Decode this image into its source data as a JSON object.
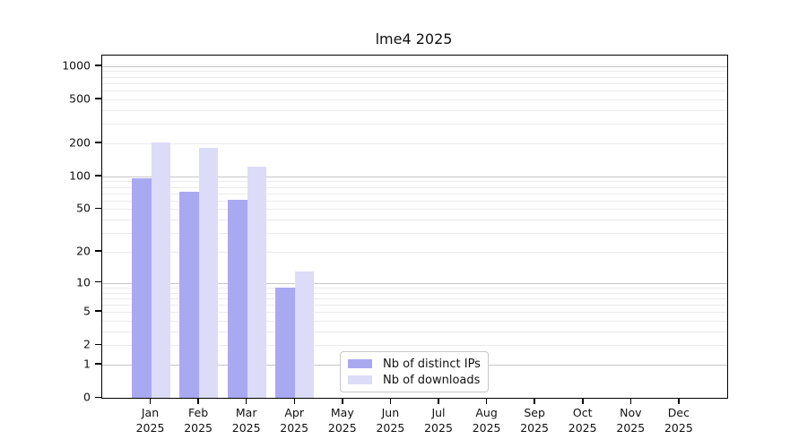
{
  "title": "lme4 2025",
  "legend": {
    "items": [
      {
        "label": "Nb of distinct IPs",
        "color": "#a9a9f2"
      },
      {
        "label": "Nb of downloads",
        "color": "#dcdcf8"
      }
    ]
  },
  "chart_data": {
    "type": "bar",
    "title": "lme4 2025",
    "categories": [
      "Jan",
      "Feb",
      "Mar",
      "Apr",
      "May",
      "Jun",
      "Jul",
      "Aug",
      "Sep",
      "Oct",
      "Nov",
      "Dec"
    ],
    "year_label": "2025",
    "series": [
      {
        "name": "Nb of distinct IPs",
        "color": "#a9a9f2",
        "values": [
          96,
          72,
          61,
          9,
          0,
          0,
          0,
          0,
          0,
          0,
          0,
          0
        ]
      },
      {
        "name": "Nb of downloads",
        "color": "#dcdcf8",
        "values": [
          205,
          181,
          122,
          13,
          0,
          0,
          0,
          0,
          0,
          0,
          0,
          0
        ]
      }
    ],
    "yscale": "log1p",
    "yticks": [
      0,
      1,
      2,
      5,
      10,
      20,
      50,
      100,
      200,
      500,
      1000
    ],
    "ylim": [
      0,
      1250
    ],
    "grid": "on",
    "legend_position": "lower center-left",
    "colors": {
      "grid_major": "#c6c6c6",
      "grid_minor": "#ebebeb",
      "spine": "#000000",
      "background": "#ffffff",
      "text": "#111111"
    }
  }
}
